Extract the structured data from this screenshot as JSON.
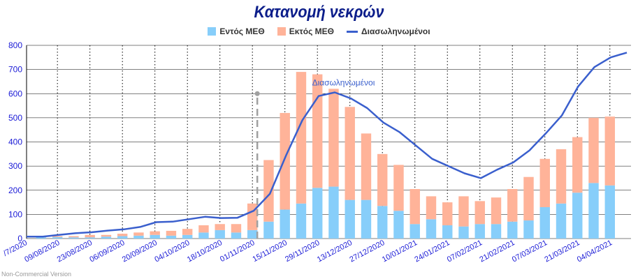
{
  "chart_data": {
    "type": "bar",
    "title": "Κατανομή νεκρών",
    "ylim": [
      0,
      800
    ],
    "yticks": [
      "0",
      "100",
      "200",
      "300",
      "400",
      "500",
      "600",
      "700",
      "800"
    ],
    "x_tick_labels": [
      "/7/2020",
      "09/08/2020",
      "23/08/2020",
      "06/09/2020",
      "20/09/2020",
      "04/10/2020",
      "18/10/2020",
      "01/11/2020",
      "15/11/2020",
      "29/11/2020",
      "13/12/2020",
      "27/12/2020",
      "10/01/2021",
      "24/01/2021",
      "07/02/2021",
      "21/02/2021",
      "07/03/2021",
      "21/03/2021",
      "04/04/2021"
    ],
    "grid": "vertical dotted + horizontal solid",
    "legend_position": "top-center",
    "series": [
      {
        "name": "Εντός ΜΕΘ",
        "kind": "bar",
        "color": "#87CEFA",
        "values": [
          5,
          6,
          5,
          5,
          8,
          10,
          12,
          15,
          12,
          15,
          25,
          35,
          25,
          35,
          70,
          120,
          145,
          210,
          215,
          160,
          160,
          135,
          115,
          60,
          80,
          55,
          50,
          60,
          60,
          70,
          75,
          130,
          145,
          190,
          230,
          220
        ]
      },
      {
        "name": "Εκτός ΜΕΘ",
        "kind": "bar",
        "color": "#FFB399",
        "values": [
          5,
          4,
          5,
          10,
          7,
          10,
          13,
          15,
          20,
          25,
          30,
          25,
          35,
          110,
          255,
          400,
          545,
          470,
          405,
          385,
          275,
          215,
          190,
          145,
          95,
          95,
          125,
          95,
          110,
          135,
          180,
          200,
          225,
          230,
          270,
          285
        ]
      },
      {
        "name": "Διασωληνωμένοι",
        "kind": "line",
        "color": "#3a5fcd",
        "values": [
          8,
          8,
          15,
          22,
          26,
          33,
          38,
          48,
          68,
          70,
          80,
          90,
          85,
          86,
          115,
          185,
          345,
          490,
          590,
          605,
          580,
          540,
          480,
          440,
          385,
          330,
          300,
          270,
          250,
          285,
          315,
          365,
          435,
          510,
          630,
          710,
          750,
          770
        ]
      }
    ],
    "annotations": [
      {
        "text": "Διασωληνωμένοι",
        "at_x_index": 18,
        "at_y": 600,
        "color": "#3a5fcd"
      }
    ],
    "marker": {
      "at_x_index": 13.3,
      "from_y": 0,
      "to_y": 600,
      "style": "dashed",
      "color": "#a0a0a0"
    }
  },
  "colors": {
    "title": "#0b1d8a",
    "axis_text": "#1a1ad6",
    "grid": "#000000"
  },
  "footer": "Non-Commercial Version"
}
